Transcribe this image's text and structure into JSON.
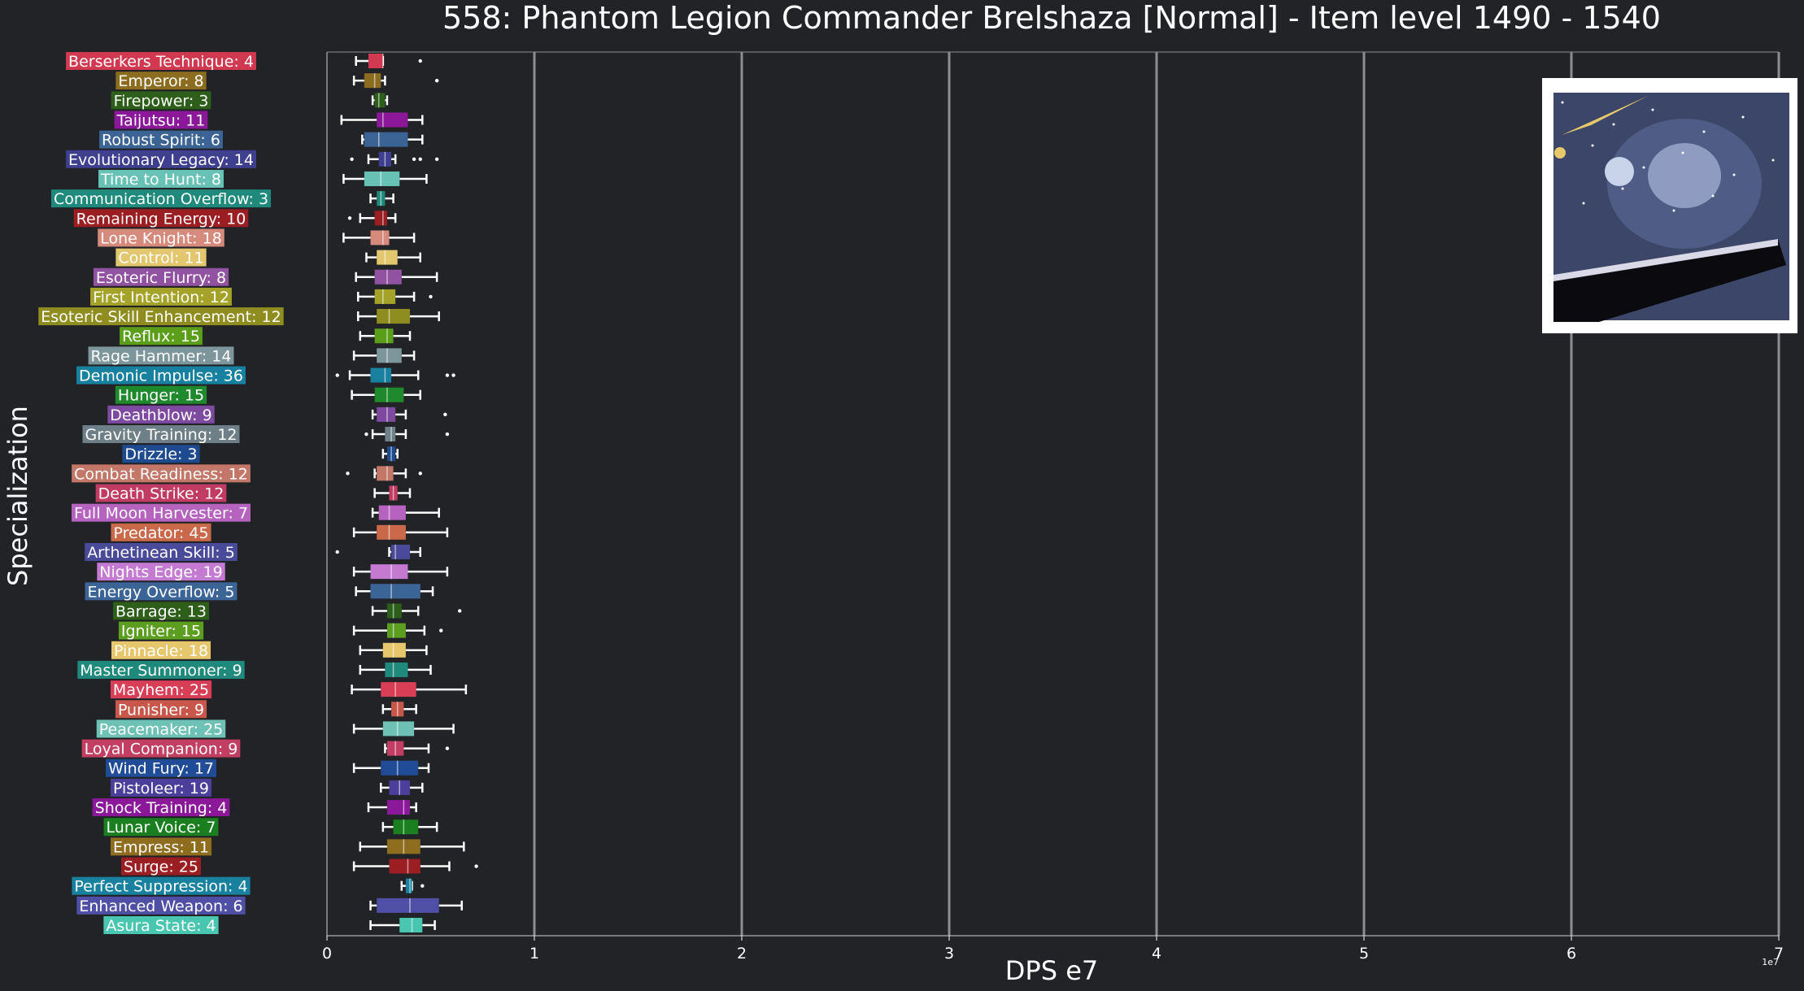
{
  "chart_data": {
    "type": "boxplot",
    "orientation": "horizontal",
    "title": "558: Phantom Legion Commander Brelshaza [Normal] - Item level 1490 - 1540",
    "xlabel": "DPS e7",
    "ylabel": "Specialization",
    "x_exponent_label": "1e7",
    "xlim": [
      0,
      7
    ],
    "x_ticks": [
      "0",
      "1",
      "2",
      "3",
      "4",
      "5",
      "6",
      "7"
    ],
    "grid": "vertical",
    "thumbnail": "boss-artwork",
    "series": [
      {
        "label": "Berserkers Technique: 4",
        "color": "#d0394f",
        "whisker_low": 0.14,
        "q1": 0.2,
        "median": 0.27,
        "q3": 0.27,
        "whisker_high": 0.27,
        "outliers": [
          0.45
        ]
      },
      {
        "label": "Emperor: 8",
        "color": "#8c6d1f",
        "whisker_low": 0.13,
        "q1": 0.18,
        "median": 0.23,
        "q3": 0.26,
        "whisker_high": 0.28,
        "outliers": [
          0.53
        ]
      },
      {
        "label": "Firepower: 3",
        "color": "#2d5f1a",
        "whisker_low": 0.22,
        "q1": 0.23,
        "median": 0.25,
        "q3": 0.28,
        "whisker_high": 0.29,
        "outliers": []
      },
      {
        "label": "Taijutsu: 11",
        "color": "#8a1898",
        "whisker_low": 0.07,
        "q1": 0.24,
        "median": 0.27,
        "q3": 0.39,
        "whisker_high": 0.46,
        "outliers": []
      },
      {
        "label": "Robust Spirit: 6",
        "color": "#3b6495",
        "whisker_low": 0.17,
        "q1": 0.18,
        "median": 0.25,
        "q3": 0.39,
        "whisker_high": 0.46,
        "outliers": []
      },
      {
        "label": "Evolutionary Legacy: 14",
        "color": "#3f3f8f",
        "whisker_low": 0.2,
        "q1": 0.25,
        "median": 0.28,
        "q3": 0.31,
        "whisker_high": 0.33,
        "outliers": [
          0.12,
          0.42,
          0.45,
          0.53
        ]
      },
      {
        "label": "Time to Hunt: 8",
        "color": "#68c1b5",
        "whisker_low": 0.08,
        "q1": 0.18,
        "median": 0.26,
        "q3": 0.35,
        "whisker_high": 0.48,
        "outliers": []
      },
      {
        "label": "Communication Overflow: 3",
        "color": "#1f8a7c",
        "whisker_low": 0.21,
        "q1": 0.24,
        "median": 0.26,
        "q3": 0.28,
        "whisker_high": 0.32,
        "outliers": []
      },
      {
        "label": "Remaining Energy: 10",
        "color": "#9b1e22",
        "whisker_low": 0.16,
        "q1": 0.23,
        "median": 0.27,
        "q3": 0.29,
        "whisker_high": 0.33,
        "outliers": [
          0.11
        ]
      },
      {
        "label": "Lone Knight: 18",
        "color": "#d58a7c",
        "whisker_low": 0.08,
        "q1": 0.21,
        "median": 0.27,
        "q3": 0.3,
        "whisker_high": 0.42,
        "outliers": []
      },
      {
        "label": "Control: 11",
        "color": "#e3c76e",
        "whisker_low": 0.19,
        "q1": 0.24,
        "median": 0.28,
        "q3": 0.34,
        "whisker_high": 0.45,
        "outliers": []
      },
      {
        "label": "Esoteric Flurry: 8",
        "color": "#9152a1",
        "whisker_low": 0.14,
        "q1": 0.23,
        "median": 0.29,
        "q3": 0.36,
        "whisker_high": 0.53,
        "outliers": []
      },
      {
        "label": "First Intention: 12",
        "color": "#a5a229",
        "whisker_low": 0.15,
        "q1": 0.23,
        "median": 0.27,
        "q3": 0.33,
        "whisker_high": 0.42,
        "outliers": [
          0.5
        ]
      },
      {
        "label": "Esoteric Skill Enhancement: 12",
        "color": "#8f8d1f",
        "whisker_low": 0.15,
        "q1": 0.24,
        "median": 0.3,
        "q3": 0.4,
        "whisker_high": 0.54,
        "outliers": []
      },
      {
        "label": "Reflux: 15",
        "color": "#5b9e1a",
        "whisker_low": 0.16,
        "q1": 0.23,
        "median": 0.29,
        "q3": 0.32,
        "whisker_high": 0.4,
        "outliers": []
      },
      {
        "label": "Rage Hammer: 14",
        "color": "#7d969b",
        "whisker_low": 0.13,
        "q1": 0.24,
        "median": 0.29,
        "q3": 0.36,
        "whisker_high": 0.42,
        "outliers": []
      },
      {
        "label": "Demonic Impulse: 36",
        "color": "#18819f",
        "whisker_low": 0.11,
        "q1": 0.21,
        "median": 0.28,
        "q3": 0.31,
        "whisker_high": 0.44,
        "outliers": [
          0.05,
          0.58,
          0.61
        ]
      },
      {
        "label": "Hunger: 15",
        "color": "#1f8a2d",
        "whisker_low": 0.12,
        "q1": 0.23,
        "median": 0.29,
        "q3": 0.37,
        "whisker_high": 0.45,
        "outliers": []
      },
      {
        "label": "Deathblow: 9",
        "color": "#7e4aa0",
        "whisker_low": 0.22,
        "q1": 0.24,
        "median": 0.29,
        "q3": 0.33,
        "whisker_high": 0.38,
        "outliers": [
          0.57
        ]
      },
      {
        "label": "Gravity Training: 12",
        "color": "#6e7f87",
        "whisker_low": 0.22,
        "q1": 0.28,
        "median": 0.31,
        "q3": 0.33,
        "whisker_high": 0.38,
        "outliers": [
          0.19,
          0.58
        ]
      },
      {
        "label": "Drizzle: 3",
        "color": "#1e4a8f",
        "whisker_low": 0.27,
        "q1": 0.29,
        "median": 0.31,
        "q3": 0.33,
        "whisker_high": 0.34,
        "outliers": []
      },
      {
        "label": "Combat Readiness: 12",
        "color": "#c37769",
        "whisker_low": 0.23,
        "q1": 0.24,
        "median": 0.29,
        "q3": 0.32,
        "whisker_high": 0.38,
        "outliers": [
          0.1,
          0.45
        ]
      },
      {
        "label": "Death Strike: 12",
        "color": "#c13c63",
        "whisker_low": 0.23,
        "q1": 0.3,
        "median": 0.32,
        "q3": 0.34,
        "whisker_high": 0.4,
        "outliers": []
      },
      {
        "label": "Full Moon Harvester: 7",
        "color": "#b663c0",
        "whisker_low": 0.22,
        "q1": 0.25,
        "median": 0.3,
        "q3": 0.38,
        "whisker_high": 0.54,
        "outliers": []
      },
      {
        "label": "Predator: 45",
        "color": "#c9694a",
        "whisker_low": 0.13,
        "q1": 0.24,
        "median": 0.3,
        "q3": 0.38,
        "whisker_high": 0.58,
        "outliers": []
      },
      {
        "label": "Arthetinean Skill: 5",
        "color": "#4a4a9a",
        "whisker_low": 0.3,
        "q1": 0.31,
        "median": 0.33,
        "q3": 0.4,
        "whisker_high": 0.45,
        "outliers": [
          0.05
        ]
      },
      {
        "label": "Nights Edge: 19",
        "color": "#c57ad1",
        "whisker_low": 0.13,
        "q1": 0.21,
        "median": 0.31,
        "q3": 0.39,
        "whisker_high": 0.58,
        "outliers": []
      },
      {
        "label": "Energy Overflow: 5",
        "color": "#3b6497",
        "whisker_low": 0.14,
        "q1": 0.21,
        "median": 0.31,
        "q3": 0.45,
        "whisker_high": 0.51,
        "outliers": []
      },
      {
        "label": "Barrage: 13",
        "color": "#2d5f1a",
        "whisker_low": 0.22,
        "q1": 0.29,
        "median": 0.32,
        "q3": 0.36,
        "whisker_high": 0.44,
        "outliers": [
          0.64
        ]
      },
      {
        "label": "Igniter: 15",
        "color": "#5c9e1f",
        "whisker_low": 0.13,
        "q1": 0.29,
        "median": 0.32,
        "q3": 0.38,
        "whisker_high": 0.47,
        "outliers": [
          0.55
        ]
      },
      {
        "label": "Pinnacle: 18",
        "color": "#e6c76b",
        "whisker_low": 0.16,
        "q1": 0.27,
        "median": 0.32,
        "q3": 0.38,
        "whisker_high": 0.48,
        "outliers": []
      },
      {
        "label": "Master Summoner: 9",
        "color": "#1f8a7c",
        "whisker_low": 0.16,
        "q1": 0.28,
        "median": 0.32,
        "q3": 0.39,
        "whisker_high": 0.5,
        "outliers": []
      },
      {
        "label": "Mayhem: 25",
        "color": "#d83e56",
        "whisker_low": 0.12,
        "q1": 0.26,
        "median": 0.33,
        "q3": 0.43,
        "whisker_high": 0.67,
        "outliers": []
      },
      {
        "label": "Punisher: 9",
        "color": "#c9564a",
        "whisker_low": 0.27,
        "q1": 0.31,
        "median": 0.34,
        "q3": 0.37,
        "whisker_high": 0.43,
        "outliers": []
      },
      {
        "label": "Peacemaker: 25",
        "color": "#6dc2b5",
        "whisker_low": 0.13,
        "q1": 0.27,
        "median": 0.34,
        "q3": 0.42,
        "whisker_high": 0.61,
        "outliers": []
      },
      {
        "label": "Loyal Companion: 9",
        "color": "#c23f63",
        "whisker_low": 0.28,
        "q1": 0.29,
        "median": 0.33,
        "q3": 0.37,
        "whisker_high": 0.49,
        "outliers": [
          0.58
        ]
      },
      {
        "label": "Wind Fury: 17",
        "color": "#1f4b97",
        "whisker_low": 0.13,
        "q1": 0.26,
        "median": 0.34,
        "q3": 0.44,
        "whisker_high": 0.49,
        "outliers": []
      },
      {
        "label": "Pistoleer: 19",
        "color": "#4b3f9b",
        "whisker_low": 0.26,
        "q1": 0.3,
        "median": 0.35,
        "q3": 0.4,
        "whisker_high": 0.46,
        "outliers": []
      },
      {
        "label": "Shock Training: 4",
        "color": "#8a1898",
        "whisker_low": 0.2,
        "q1": 0.29,
        "median": 0.37,
        "q3": 0.4,
        "whisker_high": 0.43,
        "outliers": []
      },
      {
        "label": "Lunar Voice: 7",
        "color": "#1a7f1f",
        "whisker_low": 0.27,
        "q1": 0.32,
        "median": 0.37,
        "q3": 0.44,
        "whisker_high": 0.53,
        "outliers": []
      },
      {
        "label": "Empress: 11",
        "color": "#8f6d1f",
        "whisker_low": 0.16,
        "q1": 0.29,
        "median": 0.37,
        "q3": 0.45,
        "whisker_high": 0.66,
        "outliers": []
      },
      {
        "label": "Surge: 25",
        "color": "#9b1e22",
        "whisker_low": 0.13,
        "q1": 0.3,
        "median": 0.39,
        "q3": 0.45,
        "whisker_high": 0.59,
        "outliers": [
          0.72
        ]
      },
      {
        "label": "Perfect Suppression: 4",
        "color": "#17819f",
        "whisker_low": 0.36,
        "q1": 0.38,
        "median": 0.4,
        "q3": 0.41,
        "whisker_high": 0.41,
        "outliers": [
          0.46
        ]
      },
      {
        "label": "Enhanced Weapon: 6",
        "color": "#4f4fa5",
        "whisker_low": 0.21,
        "q1": 0.24,
        "median": 0.4,
        "q3": 0.54,
        "whisker_high": 0.65,
        "outliers": []
      },
      {
        "label": "Asura State: 4",
        "color": "#48c6b0",
        "whisker_low": 0.21,
        "q1": 0.35,
        "median": 0.41,
        "q3": 0.46,
        "whisker_high": 0.52,
        "outliers": []
      }
    ]
  }
}
